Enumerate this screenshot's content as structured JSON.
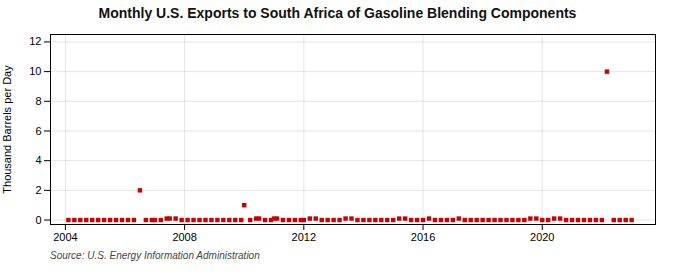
{
  "chart_data": {
    "type": "scatter",
    "title": "Monthly U.S. Exports to South Africa of Gasoline Blending Components",
    "ylabel": "Thousand Barrels per Day",
    "source": "Source: U.S. Energy Information Administration",
    "color": "#cc0000",
    "marker": "square",
    "grid": true,
    "xlim": [
      2003.5,
      2023.8
    ],
    "xticks": [
      2004,
      2008,
      2012,
      2016,
      2020
    ],
    "ylim": [
      -0.3,
      12.5
    ],
    "yticks": [
      0,
      2,
      4,
      6,
      8,
      10,
      12
    ],
    "x": [
      2004.1,
      2004.3,
      2004.5,
      2004.7,
      2004.9,
      2005.1,
      2005.3,
      2005.5,
      2005.7,
      2005.9,
      2006.1,
      2006.3,
      2006.5,
      2006.7,
      2006.9,
      2007.0,
      2007.2,
      2007.4,
      2007.5,
      2007.7,
      2007.9,
      2008.1,
      2008.3,
      2008.5,
      2008.7,
      2008.9,
      2009.1,
      2009.3,
      2009.5,
      2009.7,
      2009.9,
      2010.0,
      2010.2,
      2010.4,
      2010.5,
      2010.7,
      2010.9,
      2011.0,
      2011.1,
      2011.3,
      2011.5,
      2011.7,
      2011.9,
      2012.0,
      2012.2,
      2012.4,
      2012.6,
      2012.8,
      2013.0,
      2013.2,
      2013.4,
      2013.6,
      2013.8,
      2014.0,
      2014.2,
      2014.4,
      2014.6,
      2014.8,
      2015.0,
      2015.2,
      2015.4,
      2015.6,
      2015.8,
      2016.0,
      2016.2,
      2016.4,
      2016.6,
      2016.8,
      2017.0,
      2017.2,
      2017.4,
      2017.6,
      2017.8,
      2018.0,
      2018.2,
      2018.4,
      2018.6,
      2018.8,
      2019.0,
      2019.2,
      2019.4,
      2019.6,
      2019.8,
      2020.0,
      2020.2,
      2020.4,
      2020.6,
      2020.8,
      2021.0,
      2021.2,
      2021.4,
      2021.6,
      2021.8,
      2022.0,
      2022.17,
      2022.4,
      2022.6,
      2022.8,
      2023.0
    ],
    "values": [
      0.0,
      0.0,
      0.0,
      0.0,
      0.0,
      0.0,
      0.0,
      0.0,
      0.0,
      0.0,
      0.0,
      0.0,
      2.0,
      0.0,
      0.0,
      0.0,
      0.0,
      0.1,
      0.1,
      0.1,
      0.0,
      0.0,
      0.0,
      0.0,
      0.0,
      0.0,
      0.0,
      0.0,
      0.0,
      0.0,
      0.0,
      1.0,
      0.0,
      0.1,
      0.1,
      0.0,
      0.0,
      0.1,
      0.1,
      0.0,
      0.0,
      0.0,
      0.0,
      0.0,
      0.1,
      0.1,
      0.0,
      0.0,
      0.0,
      0.0,
      0.1,
      0.1,
      0.0,
      0.0,
      0.0,
      0.0,
      0.0,
      0.0,
      0.0,
      0.1,
      0.1,
      0.0,
      0.0,
      0.0,
      0.1,
      0.0,
      0.0,
      0.0,
      0.0,
      0.1,
      0.0,
      0.0,
      0.0,
      0.0,
      0.0,
      0.0,
      0.0,
      0.0,
      0.0,
      0.0,
      0.0,
      0.1,
      0.1,
      0.0,
      0.0,
      0.1,
      0.1,
      0.0,
      0.0,
      0.0,
      0.0,
      0.0,
      0.0,
      0.0,
      10.0,
      0.0,
      0.0,
      0.0,
      0.0
    ]
  }
}
